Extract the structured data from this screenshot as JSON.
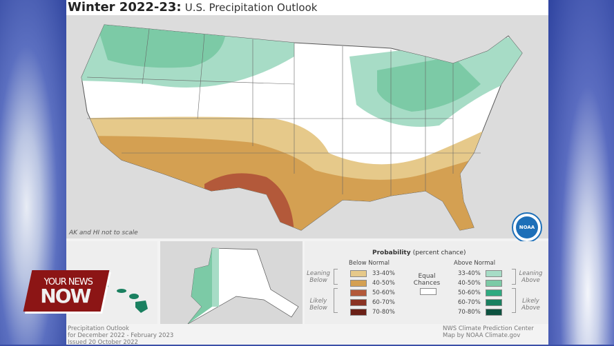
{
  "title": {
    "bold": "Winter 2022-23:",
    "sub": "U.S. Precipitation Outlook"
  },
  "map": {
    "scale_note": "AK and HI not to scale",
    "logo_text": "NOAA"
  },
  "legend": {
    "title": "Probability",
    "title_sub": "(percent chance)",
    "below_header": "Below Normal",
    "above_header": "Above Normal",
    "equal": "Equal Chances",
    "leaning_below": "Leaning Below",
    "likely_below": "Likely Below",
    "leaning_above": "Leaning Above",
    "likely_above": "Likely Above",
    "below": [
      {
        "label": "33-40%",
        "color": "#e6c98a"
      },
      {
        "label": "40-50%",
        "color": "#d4a052"
      },
      {
        "label": "50-60%",
        "color": "#b3593a"
      },
      {
        "label": "60-70%",
        "color": "#8a3324"
      },
      {
        "label": "70-80%",
        "color": "#6a2016"
      }
    ],
    "above": [
      {
        "label": "33-40%",
        "color": "#a7dcc6"
      },
      {
        "label": "40-50%",
        "color": "#7ccaa6"
      },
      {
        "label": "50-60%",
        "color": "#2eaa80"
      },
      {
        "label": "60-70%",
        "color": "#1a8060"
      },
      {
        "label": "70-80%",
        "color": "#0d5240"
      }
    ],
    "equal_color": "#ffffff"
  },
  "footer": {
    "left": [
      "Precipitation Outlook",
      "for December 2022 - February 2023",
      "Issued 20 October 2022"
    ],
    "right": [
      "NWS Climate Prediction Center",
      "Map by NOAA Climate.gov"
    ]
  },
  "overlay": {
    "line1": "YOUR NEWS",
    "line2": "NOW"
  }
}
